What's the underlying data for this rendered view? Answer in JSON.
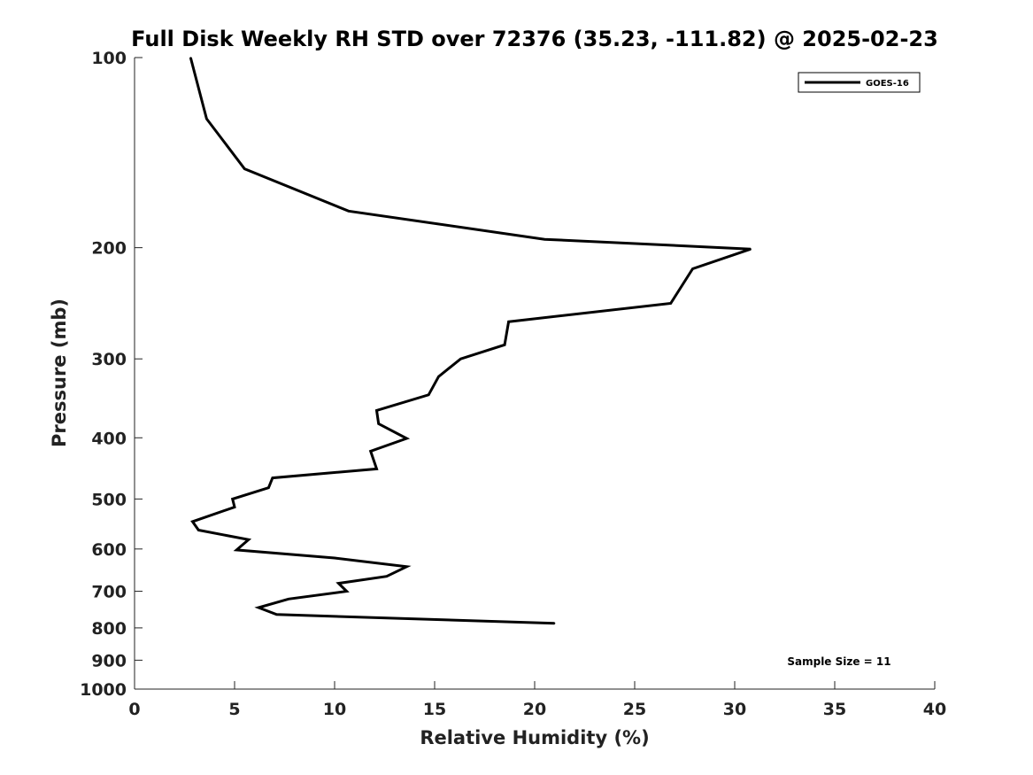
{
  "chart_data": {
    "type": "line",
    "title": "Full Disk Weekly RH STD over 72376 (35.23, -111.82) @ 2025-02-23",
    "xlabel": "Relative Humidity (%)",
    "ylabel": "Pressure (mb)",
    "xlim": [
      0,
      40
    ],
    "ylim": [
      100,
      1000
    ],
    "y_scale": "log",
    "y_inverted": true,
    "x_ticks": [
      0,
      5,
      10,
      15,
      20,
      25,
      30,
      35,
      40
    ],
    "y_ticks": [
      100,
      200,
      300,
      400,
      500,
      600,
      700,
      800,
      900,
      1000
    ],
    "grid": false,
    "legend_position": "top-right",
    "line_color": "#000000",
    "series": [
      {
        "name": "GOES-16",
        "points": [
          [
            2.8,
            100
          ],
          [
            3.6,
            125
          ],
          [
            5.5,
            150
          ],
          [
            10.7,
            175
          ],
          [
            20.5,
            194
          ],
          [
            30.8,
            201
          ],
          [
            27.9,
            216
          ],
          [
            26.8,
            245
          ],
          [
            18.7,
            262
          ],
          [
            18.5,
            285
          ],
          [
            16.3,
            300
          ],
          [
            15.2,
            320
          ],
          [
            14.7,
            342
          ],
          [
            12.1,
            362
          ],
          [
            12.2,
            380
          ],
          [
            13.6,
            401
          ],
          [
            11.8,
            420
          ],
          [
            12.1,
            448
          ],
          [
            6.9,
            463
          ],
          [
            6.7,
            480
          ],
          [
            4.9,
            500
          ],
          [
            5.0,
            515
          ],
          [
            2.9,
            543
          ],
          [
            3.2,
            560
          ],
          [
            5.7,
            580
          ],
          [
            5.1,
            602
          ],
          [
            10.0,
            620
          ],
          [
            13.6,
            640
          ],
          [
            12.6,
            663
          ],
          [
            10.2,
            680
          ],
          [
            10.6,
            700
          ],
          [
            7.7,
            720
          ],
          [
            6.2,
            743
          ],
          [
            7.1,
            762
          ],
          [
            21.0,
            787
          ]
        ]
      }
    ],
    "annotations": [
      "Sample Size = 11"
    ]
  }
}
